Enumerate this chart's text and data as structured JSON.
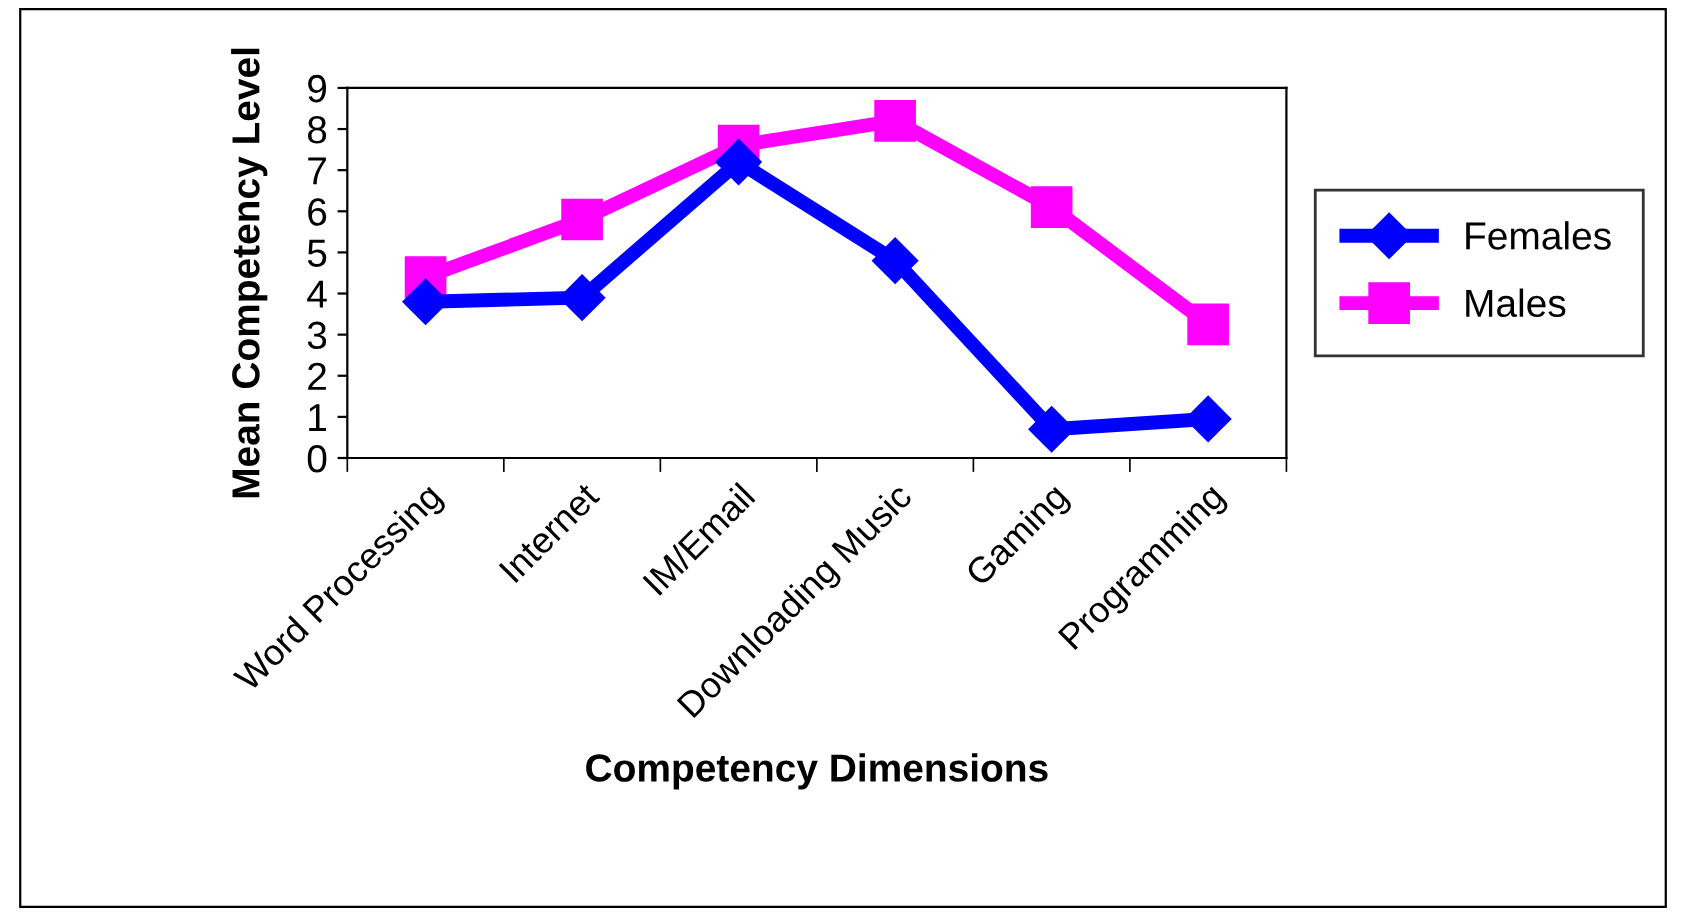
{
  "chart_data": {
    "type": "line",
    "xlabel": "Competency Dimensions",
    "ylabel": "Mean Competency Level",
    "categories": [
      "Word Processing",
      "Internet",
      "IM/Email",
      "Downloading Music",
      "Gaming",
      "Programming"
    ],
    "series": [
      {
        "name": "Females",
        "color": "#0000ff",
        "values": [
          3.8,
          3.9,
          7.2,
          4.8,
          0.7,
          0.95
        ],
        "marker": "diamond"
      },
      {
        "name": "Males",
        "color": "#ff00ff",
        "values": [
          4.4,
          5.8,
          7.6,
          8.2,
          6.1,
          3.25
        ],
        "marker": "square"
      }
    ],
    "ylim": [
      0,
      9
    ],
    "yticks": [
      0,
      1,
      2,
      3,
      4,
      5,
      6,
      7,
      8,
      9
    ],
    "grid": false,
    "legend": "right",
    "line_style": "solid"
  }
}
